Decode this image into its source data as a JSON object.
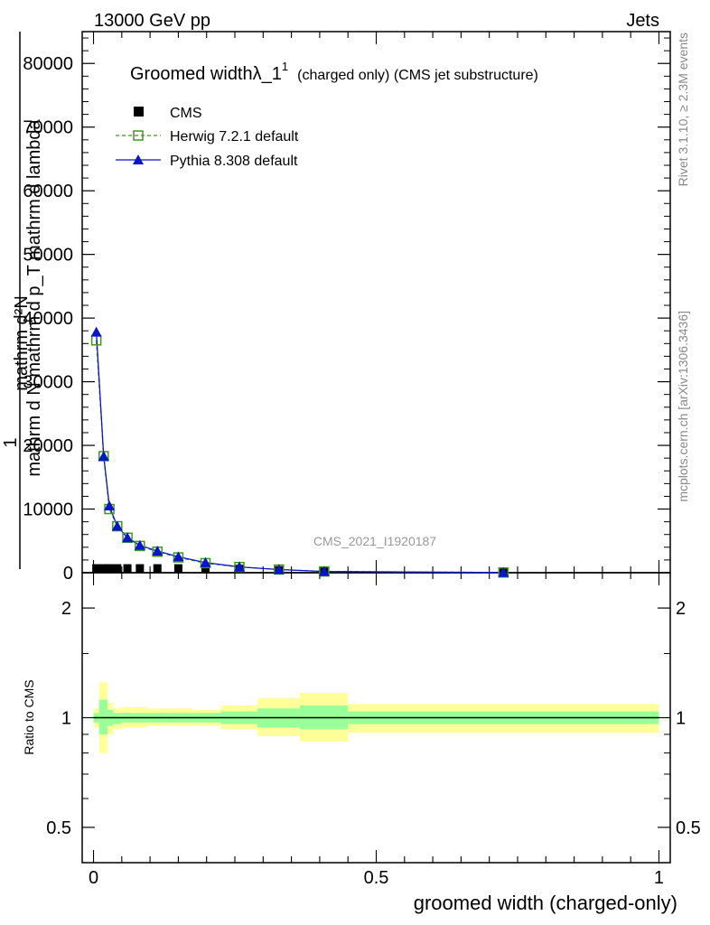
{
  "header": {
    "left": "13000 GeV pp",
    "right": "Jets"
  },
  "side": {
    "rivet": "Rivet 3.1.10, ≥ 2.3M events",
    "site": "mcplots.cern.ch [arXiv:1306.3436]"
  },
  "analysis_id": "CMS_2021_I1920187",
  "title": {
    "main": "Groomed widthλ_1",
    "sup": "1",
    "sub": "(charged only) (CMS jet substructure)"
  },
  "ylabel": {
    "top": "1",
    "numer": "mathrm d²N",
    "denom": "mathrm d N mathrm d p_T mathrm d lambda"
  },
  "xlabel": "groomed width (charged-only)",
  "ratio_ylabel": "Ratio to CMS",
  "colors": {
    "herwig": "#3a9a1a",
    "pythia": "#0a14cc",
    "band_outer": "#ffff99",
    "band_inner": "#99ff99"
  },
  "chart_data": [
    {
      "type": "line",
      "panel": "main",
      "xlim": [
        -0.02,
        1.02
      ],
      "ylim": [
        0,
        85000
      ],
      "xticks": [
        "0",
        "0.5",
        "1"
      ],
      "yticks": [
        "0",
        "10000",
        "20000",
        "30000",
        "40000",
        "50000",
        "60000",
        "70000",
        "80000"
      ],
      "x": [
        0.005,
        0.018,
        0.028,
        0.042,
        0.06,
        0.082,
        0.113,
        0.15,
        0.198,
        0.258,
        0.328,
        0.408,
        0.725
      ],
      "series": [
        {
          "name": "CMS",
          "values": [
            700,
            700,
            700,
            700,
            700,
            700,
            700,
            700,
            700,
            600,
            400,
            200,
            40
          ]
        },
        {
          "name": "Herwig 7.2.1 default",
          "values": [
            36500,
            18300,
            10000,
            7300,
            5500,
            4200,
            3300,
            2400,
            1500,
            900,
            500,
            200,
            30
          ]
        },
        {
          "name": "Pythia 8.308 default",
          "values": [
            37800,
            18300,
            10500,
            7300,
            5500,
            4300,
            3400,
            2500,
            1600,
            900,
            500,
            200,
            30
          ]
        }
      ]
    },
    {
      "type": "area",
      "panel": "ratio",
      "xlim": [
        -0.02,
        1.02
      ],
      "ylim": [
        0.4,
        2.5
      ],
      "yscale": "log",
      "yticks": [
        "0.5",
        "1",
        "2"
      ],
      "reference": 1,
      "bins": [
        {
          "x": [
            0.0,
            0.01
          ],
          "inner": [
            0.97,
            1.03
          ],
          "outer": [
            0.94,
            1.06
          ]
        },
        {
          "x": [
            0.01,
            0.025
          ],
          "inner": [
            0.9,
            1.12
          ],
          "outer": [
            0.8,
            1.25
          ]
        },
        {
          "x": [
            0.025,
            0.035
          ],
          "inner": [
            0.95,
            1.05
          ],
          "outer": [
            0.9,
            1.1
          ]
        },
        {
          "x": [
            0.035,
            0.05
          ],
          "inner": [
            0.96,
            1.03
          ],
          "outer": [
            0.93,
            1.06
          ]
        },
        {
          "x": [
            0.05,
            0.07
          ],
          "inner": [
            0.97,
            1.03
          ],
          "outer": [
            0.94,
            1.07
          ]
        },
        {
          "x": [
            0.07,
            0.095
          ],
          "inner": [
            0.97,
            1.03
          ],
          "outer": [
            0.94,
            1.07
          ]
        },
        {
          "x": [
            0.095,
            0.13
          ],
          "inner": [
            0.97,
            1.03
          ],
          "outer": [
            0.95,
            1.06
          ]
        },
        {
          "x": [
            0.13,
            0.175
          ],
          "inner": [
            0.97,
            1.03
          ],
          "outer": [
            0.95,
            1.06
          ]
        },
        {
          "x": [
            0.175,
            0.225
          ],
          "inner": [
            0.97,
            1.03
          ],
          "outer": [
            0.95,
            1.05
          ]
        },
        {
          "x": [
            0.225,
            0.29
          ],
          "inner": [
            0.96,
            1.04
          ],
          "outer": [
            0.93,
            1.08
          ]
        },
        {
          "x": [
            0.29,
            0.365
          ],
          "inner": [
            0.94,
            1.06
          ],
          "outer": [
            0.89,
            1.13
          ]
        },
        {
          "x": [
            0.365,
            0.45
          ],
          "inner": [
            0.93,
            1.08
          ],
          "outer": [
            0.86,
            1.17
          ]
        },
        {
          "x": [
            0.45,
            1.0
          ],
          "inner": [
            0.96,
            1.04
          ],
          "outer": [
            0.91,
            1.09
          ]
        }
      ]
    }
  ]
}
